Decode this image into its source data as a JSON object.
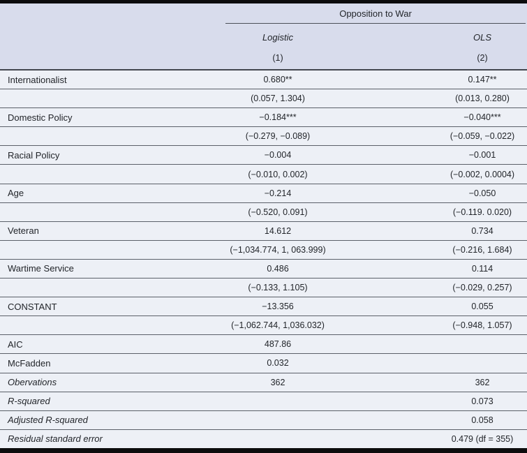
{
  "table": {
    "spanner": "Opposition to War",
    "columns": {
      "col1": {
        "model": "Logistic",
        "number": "(1)"
      },
      "col2": {
        "model": "OLS",
        "number": "(2)"
      }
    },
    "rows": [
      {
        "label": "Internationalist",
        "v1": "0.680**",
        "v2": "0.147**"
      },
      {
        "label": "",
        "v1": "(0.057, 1.304)",
        "v2": "(0.013, 0.280)"
      },
      {
        "label": "Domestic Policy",
        "v1": "−0.184***",
        "v2": "−0.040***"
      },
      {
        "label": "",
        "v1": "(−0.279, −0.089)",
        "v2": "(−0.059, −0.022)"
      },
      {
        "label": "Racial Policy",
        "v1": "−0.004",
        "v2": "−0.001"
      },
      {
        "label": "",
        "v1": "(−0.010, 0.002)",
        "v2": "(−0.002, 0.0004)"
      },
      {
        "label": "Age",
        "v1": "−0.214",
        "v2": "−0.050"
      },
      {
        "label": "",
        "v1": "(−0.520, 0.091)",
        "v2": "(−0.119. 0.020)"
      },
      {
        "label": "Veteran",
        "v1": "14.612",
        "v2": "0.734"
      },
      {
        "label": "",
        "v1": "(−1,034.774, 1, 063.999)",
        "v2": "(−0.216, 1.684)"
      },
      {
        "label": "Wartime Service",
        "v1": "0.486",
        "v2": "0.114"
      },
      {
        "label": "",
        "v1": "(−0.133, 1.105)",
        "v2": "(−0.029, 0.257)"
      },
      {
        "label": "CONSTANT",
        "v1": "−13.356",
        "v2": "0.055"
      },
      {
        "label": "",
        "v1": "(−1,062.744, 1,036.032)",
        "v2": "(−0.948, 1.057)"
      },
      {
        "label": "AIC",
        "v1": "487.86",
        "v2": ""
      },
      {
        "label": "McFadden",
        "v1": "0.032",
        "v2": ""
      },
      {
        "label": "Obervations",
        "v1": "362",
        "v2": "362"
      },
      {
        "label": "R-squared",
        "v1": "",
        "v2": "0.073"
      },
      {
        "label": "Adjusted R-squared",
        "v1": "",
        "v2": "0.058"
      },
      {
        "label": "Residual standard error",
        "v1": "",
        "v2": "0.479 (df = 355)"
      }
    ],
    "colors": {
      "header_bg": "#d8dcec",
      "body_bg": "#edf0f6",
      "rule_bar": "#0c0c0d",
      "text": "#22252a"
    }
  }
}
